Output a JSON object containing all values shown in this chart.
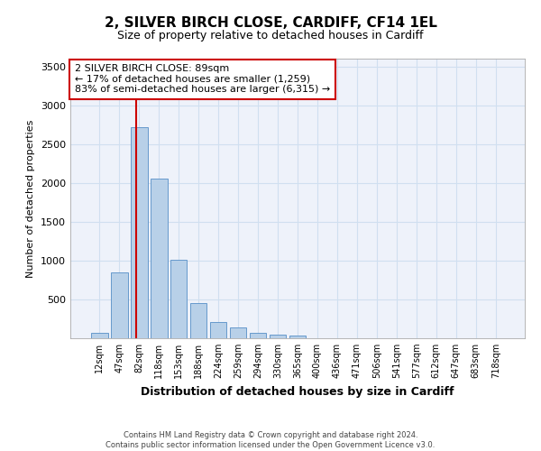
{
  "title_line1": "2, SILVER BIRCH CLOSE, CARDIFF, CF14 1EL",
  "title_line2": "Size of property relative to detached houses in Cardiff",
  "xlabel": "Distribution of detached houses by size in Cardiff",
  "ylabel": "Number of detached properties",
  "bar_categories": [
    "12sqm",
    "47sqm",
    "82sqm",
    "118sqm",
    "153sqm",
    "188sqm",
    "224sqm",
    "259sqm",
    "294sqm",
    "330sqm",
    "365sqm",
    "400sqm",
    "436sqm",
    "471sqm",
    "506sqm",
    "541sqm",
    "577sqm",
    "612sqm",
    "647sqm",
    "683sqm",
    "718sqm"
  ],
  "bar_values": [
    70,
    850,
    2720,
    2060,
    1010,
    450,
    210,
    145,
    70,
    50,
    35,
    0,
    0,
    0,
    0,
    0,
    0,
    0,
    0,
    0,
    0
  ],
  "bar_color": "#b8d0e8",
  "bar_edge_color": "#6699cc",
  "grid_color": "#d0dff0",
  "background_color": "#eef2fa",
  "red_line_index": 2,
  "red_line_color": "#cc0000",
  "annotation_text": "2 SILVER BIRCH CLOSE: 89sqm\n← 17% of detached houses are smaller (1,259)\n83% of semi-detached houses are larger (6,315) →",
  "annotation_box_color": "#ffffff",
  "annotation_border_color": "#cc0000",
  "ylim": [
    0,
    3600
  ],
  "yticks": [
    0,
    500,
    1000,
    1500,
    2000,
    2500,
    3000,
    3500
  ],
  "footer_line1": "Contains HM Land Registry data © Crown copyright and database right 2024.",
  "footer_line2": "Contains public sector information licensed under the Open Government Licence v3.0.",
  "fig_bg": "#ffffff"
}
